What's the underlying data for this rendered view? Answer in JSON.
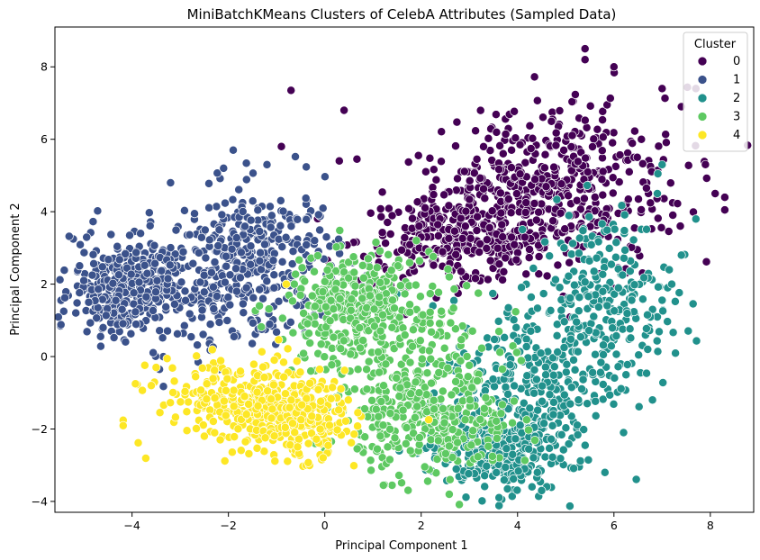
{
  "chart_data": {
    "type": "scatter",
    "title": "MiniBatchKMeans Clusters of CelebA Attributes (Sampled Data)",
    "xlabel": "Principal Component 1",
    "ylabel": "Principal Component 2",
    "xlim": [
      -5.6,
      8.9
    ],
    "ylim": [
      -4.3,
      9.1
    ],
    "xticks": [
      -4,
      -2,
      0,
      2,
      4,
      6,
      8
    ],
    "yticks": [
      -4,
      -2,
      0,
      2,
      4,
      6,
      8
    ],
    "grid": false,
    "legend": {
      "title": "Cluster",
      "placement": "top-right"
    },
    "series": [
      {
        "name": "0",
        "color": "#440154",
        "centers": [
          {
            "x": 3.8,
            "y": 4.3,
            "sx": 0.9,
            "sy": 1.0
          },
          {
            "x": 2.7,
            "y": 3.2,
            "sx": 1.0,
            "sy": 0.6
          },
          {
            "x": 5.3,
            "y": 4.8,
            "sx": 1.1,
            "sy": 1.3
          }
        ],
        "extra_points": [
          [
            -0.7,
            7.35
          ],
          [
            0.4,
            6.8
          ],
          [
            5.4,
            8.5
          ],
          [
            5.4,
            8.2
          ],
          [
            6.0,
            8.0
          ],
          [
            7.0,
            7.4
          ],
          [
            7.7,
            7.4
          ],
          [
            7.4,
            6.9
          ],
          [
            8.1,
            4.5
          ],
          [
            8.3,
            4.4
          ],
          [
            8.3,
            4.05
          ],
          [
            -0.9,
            5.8
          ],
          [
            0.3,
            5.4
          ]
        ]
      },
      {
        "name": "1",
        "color": "#3b528b",
        "centers": [
          {
            "x": -2.8,
            "y": 2.0,
            "sx": 1.2,
            "sy": 0.9
          },
          {
            "x": -1.3,
            "y": 2.9,
            "sx": 0.8,
            "sy": 0.9
          },
          {
            "x": -4.2,
            "y": 1.8,
            "sx": 0.5,
            "sy": 0.6
          }
        ],
        "extra_points": [
          [
            -1.9,
            5.7
          ],
          [
            -3.2,
            4.8
          ],
          [
            -2.1,
            5.2
          ],
          [
            -1.2,
            5.3
          ],
          [
            -5.0,
            2.1
          ],
          [
            -4.9,
            1.5
          ],
          [
            -4.6,
            0.8
          ]
        ]
      },
      {
        "name": "2",
        "color": "#21918c",
        "centers": [
          {
            "x": 4.2,
            "y": -0.8,
            "sx": 0.8,
            "sy": 1.2
          },
          {
            "x": 5.8,
            "y": 1.5,
            "sx": 0.7,
            "sy": 1.3
          },
          {
            "x": 3.5,
            "y": -2.6,
            "sx": 0.7,
            "sy": 0.6
          }
        ],
        "extra_points": [
          [
            7.0,
            5.3
          ],
          [
            6.9,
            4.5
          ],
          [
            7.7,
            3.8
          ],
          [
            7.4,
            2.8
          ],
          [
            7.2,
            2.0
          ],
          [
            6.7,
            0.2
          ],
          [
            6.8,
            -1.2
          ],
          [
            4.5,
            -3.7
          ],
          [
            6.2,
            -2.1
          ],
          [
            4.3,
            -3.6
          ]
        ]
      },
      {
        "name": "3",
        "color": "#5ec962",
        "centers": [
          {
            "x": 1.5,
            "y": 0.2,
            "sx": 1.0,
            "sy": 1.2
          },
          {
            "x": 2.3,
            "y": -1.9,
            "sx": 0.8,
            "sy": 0.7
          },
          {
            "x": 0.6,
            "y": 1.5,
            "sx": 0.7,
            "sy": 0.6
          }
        ],
        "extra_points": [
          [
            0.0,
            -2.6
          ],
          [
            -0.2,
            -2.4
          ],
          [
            2.6,
            -3.4
          ],
          [
            1.9,
            3.2
          ],
          [
            0.9,
            2.7
          ]
        ]
      },
      {
        "name": "4",
        "color": "#fde725",
        "centers": [
          {
            "x": -1.7,
            "y": -1.2,
            "sx": 0.9,
            "sy": 0.6
          },
          {
            "x": -0.6,
            "y": -1.8,
            "sx": 0.5,
            "sy": 0.5
          }
        ],
        "extra_points": [
          [
            -3.6,
            -0.8
          ],
          [
            -3.5,
            -0.3
          ],
          [
            -0.8,
            2.0
          ],
          [
            -2.5,
            -2.2
          ],
          [
            0.1,
            -1.9
          ]
        ]
      }
    ]
  }
}
